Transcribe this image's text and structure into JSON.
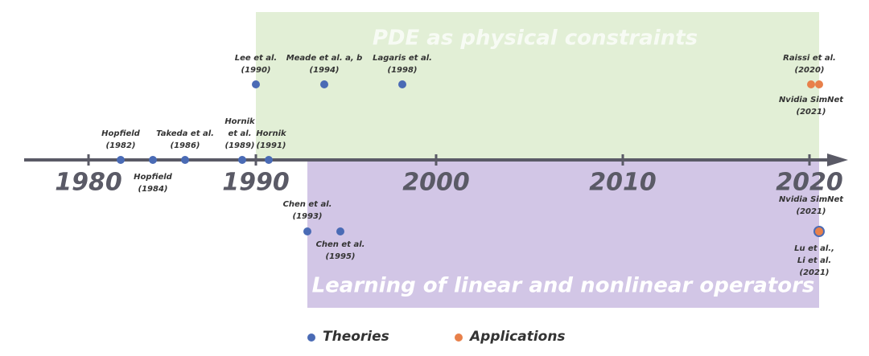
{
  "axis": {
    "ticks": [
      "1980",
      "1990",
      "2000",
      "2010",
      "2020"
    ]
  },
  "regions": [
    {
      "label": "PDE as physical constraints"
    },
    {
      "label": "Learning of linear and nonlinear operators"
    }
  ],
  "events": [
    {
      "lines": [
        "Hopfield",
        "(1982)"
      ]
    },
    {
      "lines": [
        "Hopfield",
        "(1984)"
      ]
    },
    {
      "lines": [
        "Takeda et al.",
        "(1986)"
      ]
    },
    {
      "lines": [
        "Hornik",
        "et al.",
        "(1989)"
      ]
    },
    {
      "lines": [
        "Hornik",
        "(1991)"
      ]
    },
    {
      "lines": [
        "Lee et al.",
        "(1990)"
      ]
    },
    {
      "lines": [
        "Meade et al. a, b",
        "(1994)"
      ]
    },
    {
      "lines": [
        "Lagaris et al.",
        "(1998)"
      ]
    },
    {
      "lines": [
        "Raissi et al.",
        "(2020)"
      ]
    },
    {
      "lines": [
        "Nvidia SimNet",
        "(2021)"
      ]
    },
    {
      "lines": [
        "Chen et al.",
        "(1993)"
      ]
    },
    {
      "lines": [
        "Chen et al.",
        "(1995)"
      ]
    },
    {
      "lines": [
        "Nvidia SimNet",
        "(2021)"
      ]
    },
    {
      "lines": [
        "Lu et al.,",
        "Li et al.",
        "(2021)"
      ]
    }
  ],
  "legend": [
    {
      "label": "Theories"
    },
    {
      "label": "Applications"
    }
  ]
}
